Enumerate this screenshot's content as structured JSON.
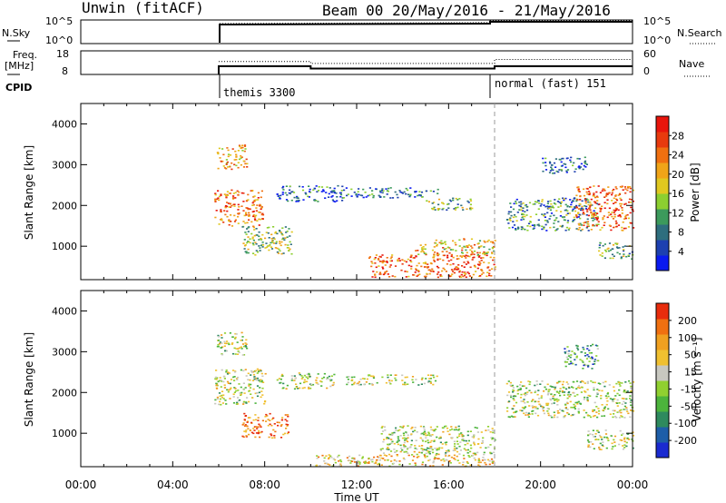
{
  "header": {
    "station": "Unwin (fitACF)",
    "beam_date": "Beam 00  20/May/2016 - 21/May/2016"
  },
  "nsky_panel": {
    "left_label": "N.Sky",
    "right_label": "N.Search",
    "left_ticks": [
      "10^5",
      "10^0"
    ],
    "right_ticks": [
      "10^5",
      "10^0"
    ]
  },
  "freq_panel": {
    "left_label_1": "Freq.",
    "left_label_2": "[MHz]",
    "left_ticks": [
      "18",
      "8"
    ],
    "right_label": "Nave",
    "right_ticks": [
      "60",
      "0"
    ],
    "freq_mhz": [
      {
        "x_start": 6.0,
        "x_end": 10.0,
        "value": 11.5
      },
      {
        "x_start": 10.0,
        "x_end": 18.0,
        "value": 10.5
      },
      {
        "x_start": 18.0,
        "x_end": 24.0,
        "value": 11.5
      }
    ],
    "nave": [
      {
        "x_start": 6.0,
        "x_end": 10.0,
        "value": 33
      },
      {
        "x_start": 10.0,
        "x_end": 18.0,
        "value": 28
      },
      {
        "x_start": 18.0,
        "x_end": 24.0,
        "value": 38
      }
    ]
  },
  "cpid": {
    "label": "CPID",
    "modes": [
      {
        "start_hour": 6.0,
        "text": "themis 3300"
      },
      {
        "start_hour": 18.0,
        "text": "normal (fast) 151"
      }
    ]
  },
  "chart_data": [
    {
      "type": "heatmap",
      "quantity": "power",
      "ylabel": "Slant Range [km]",
      "ylim": [
        180,
        4500
      ],
      "yticks": [
        1000,
        2000,
        3000,
        4000
      ],
      "xlim": [
        0,
        24
      ],
      "colorbar": {
        "label": "Power [dB]",
        "ticks": [
          "4",
          "8",
          "12",
          "16",
          "20",
          "24",
          "28"
        ],
        "colors": [
          "#0a1af0",
          "#1d40b0",
          "#2e6e7e",
          "#3c9a5c",
          "#8ccf30",
          "#e0c820",
          "#f0a418",
          "#f07010",
          "#e83a0e",
          "#e8150c"
        ]
      },
      "echo_regions": [
        {
          "t0": 5.8,
          "t1": 7.9,
          "r0": 1500,
          "r1": 2400,
          "level": 0.75
        },
        {
          "t0": 5.9,
          "t1": 7.2,
          "r0": 2900,
          "r1": 3500,
          "level": 0.65
        },
        {
          "t0": 7.0,
          "t1": 9.2,
          "r0": 800,
          "r1": 1500,
          "level": 0.45
        },
        {
          "t0": 8.5,
          "t1": 11.5,
          "r0": 2100,
          "r1": 2500,
          "level": 0.2
        },
        {
          "t0": 11.5,
          "t1": 15.5,
          "r0": 2200,
          "r1": 2450,
          "level": 0.25
        },
        {
          "t0": 12.5,
          "t1": 18.0,
          "r0": 250,
          "r1": 800,
          "level": 0.8
        },
        {
          "t0": 14.5,
          "t1": 18.0,
          "r0": 800,
          "r1": 1200,
          "level": 0.6
        },
        {
          "t0": 15.0,
          "t1": 17.0,
          "r0": 1900,
          "r1": 2200,
          "level": 0.4
        },
        {
          "t0": 18.5,
          "t1": 22.5,
          "r0": 1400,
          "r1": 2200,
          "level": 0.3
        },
        {
          "t0": 21.5,
          "t1": 24.0,
          "r0": 1400,
          "r1": 2500,
          "level": 0.8
        },
        {
          "t0": 22.5,
          "t1": 24.0,
          "r0": 700,
          "r1": 1100,
          "level": 0.4
        },
        {
          "t0": 20.0,
          "t1": 22.0,
          "r0": 2800,
          "r1": 3200,
          "level": 0.2
        }
      ]
    },
    {
      "type": "heatmap",
      "quantity": "velocity",
      "ylabel": "Slant Range [km]",
      "xlabel": "Time UT",
      "ylim": [
        180,
        4500
      ],
      "yticks": [
        1000,
        2000,
        3000,
        4000
      ],
      "xlim": [
        0,
        24
      ],
      "xticks": [
        "00:00",
        "04:00",
        "08:00",
        "12:00",
        "16:00",
        "20:00",
        "00:00"
      ],
      "colorbar": {
        "label": "Velocity [m s⁻¹]",
        "ticks": [
          "200",
          "100",
          "50",
          "15",
          "-15",
          "-50",
          "-100",
          "-200"
        ],
        "colors": [
          "#1a2ad0",
          "#1e5ea8",
          "#2e8a5e",
          "#4cb43c",
          "#90d030",
          "#c8c8c0",
          "#f0c030",
          "#f0a020",
          "#f07010",
          "#e82c0c"
        ]
      },
      "echo_regions": [
        {
          "t0": 5.8,
          "t1": 8.0,
          "r0": 1700,
          "r1": 2600,
          "level": 0.5
        },
        {
          "t0": 5.9,
          "t1": 7.2,
          "r0": 2900,
          "r1": 3500,
          "level": 0.5
        },
        {
          "t0": 7.0,
          "t1": 9.0,
          "r0": 900,
          "r1": 1500,
          "level": 0.85
        },
        {
          "t0": 8.5,
          "t1": 11.0,
          "r0": 2100,
          "r1": 2500,
          "level": 0.5
        },
        {
          "t0": 11.5,
          "t1": 15.5,
          "r0": 2200,
          "r1": 2450,
          "level": 0.5
        },
        {
          "t0": 10.0,
          "t1": 18.0,
          "r0": 200,
          "r1": 500,
          "level": 0.65
        },
        {
          "t0": 13.0,
          "t1": 18.0,
          "r0": 500,
          "r1": 1200,
          "level": 0.5
        },
        {
          "t0": 18.5,
          "t1": 24.0,
          "r0": 1400,
          "r1": 2300,
          "level": 0.5
        },
        {
          "t0": 22.0,
          "t1": 24.0,
          "r0": 600,
          "r1": 1100,
          "level": 0.5
        },
        {
          "t0": 21.0,
          "t1": 22.5,
          "r0": 2600,
          "r1": 3200,
          "level": 0.3
        }
      ]
    }
  ]
}
